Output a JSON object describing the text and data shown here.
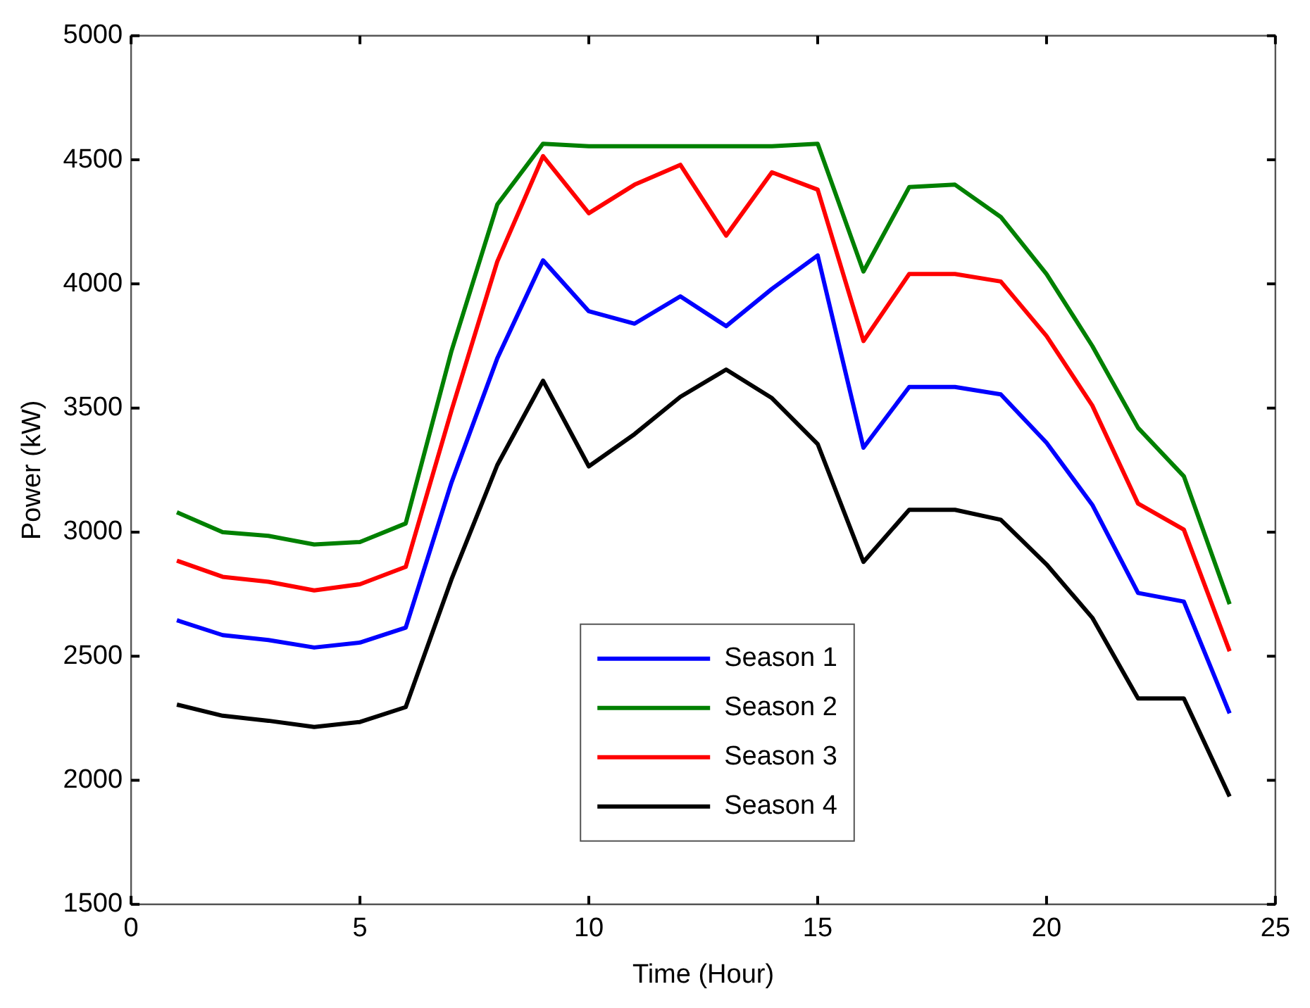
{
  "chart_data": {
    "type": "line",
    "xlabel": "Time (Hour)",
    "ylabel": "Power (kW)",
    "x": [
      1,
      2,
      3,
      4,
      5,
      6,
      7,
      8,
      9,
      10,
      11,
      12,
      13,
      14,
      15,
      16,
      17,
      18,
      19,
      20,
      21,
      22,
      23,
      24
    ],
    "xlim": [
      0,
      25
    ],
    "xticks": [
      0,
      5,
      10,
      15,
      20,
      25
    ],
    "ylim": [
      1500,
      5000
    ],
    "yticks": [
      1500,
      2000,
      2500,
      3000,
      3500,
      4000,
      4500,
      5000
    ],
    "grid": false,
    "legend": "bottom",
    "marker": "none",
    "line_style": "solid",
    "series": [
      {
        "name": "Season 1",
        "color": "#0000ff",
        "values": [
          2645,
          2585,
          2565,
          2535,
          2555,
          2615,
          3200,
          3700,
          4095,
          3890,
          3840,
          3950,
          3830,
          3980,
          4115,
          3340,
          3585,
          3585,
          3555,
          3360,
          3110,
          2755,
          2720,
          2270
        ]
      },
      {
        "name": "Season 2",
        "color": "#008000",
        "values": [
          3080,
          3000,
          2985,
          2950,
          2960,
          3035,
          3730,
          4320,
          4565,
          4555,
          4555,
          4555,
          4555,
          4555,
          4565,
          4050,
          4390,
          4400,
          4270,
          4040,
          3750,
          3420,
          3225,
          2710
        ]
      },
      {
        "name": "Season 3",
        "color": "#ff0000",
        "values": [
          2885,
          2820,
          2800,
          2765,
          2790,
          2860,
          3490,
          4090,
          4515,
          4285,
          4400,
          4480,
          4195,
          4450,
          4380,
          3770,
          4040,
          4040,
          4010,
          3790,
          3510,
          3115,
          3010,
          2520
        ]
      },
      {
        "name": "Season 4",
        "color": "#000000",
        "values": [
          2305,
          2260,
          2240,
          2215,
          2235,
          2295,
          2810,
          3270,
          3610,
          3265,
          3395,
          3545,
          3655,
          3540,
          3355,
          2880,
          3090,
          3090,
          3050,
          2870,
          2655,
          2330,
          2330,
          1935
        ]
      }
    ]
  }
}
